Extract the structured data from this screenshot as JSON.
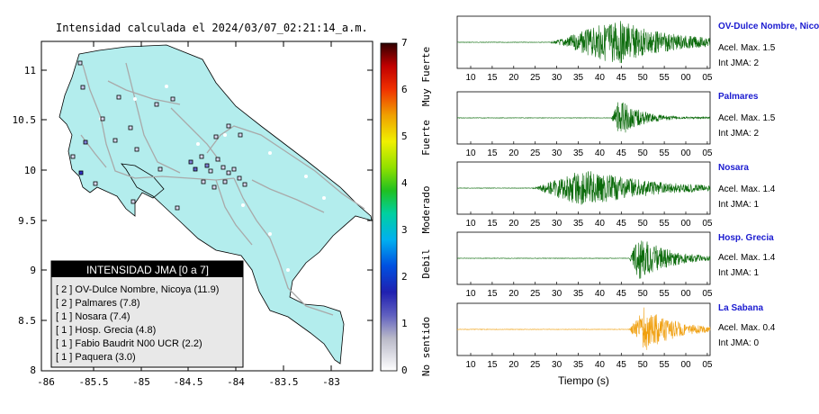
{
  "map": {
    "title": "Intensidad calculada el 2024/03/07_02:21:14_a.m.",
    "lat_ticks": [
      "11",
      "10.5",
      "10",
      "9.5",
      "9",
      "8.5",
      "8"
    ],
    "lon_ticks": [
      "-86",
      "-85.5",
      "-85",
      "-84.5",
      "-84",
      "-83.5",
      "-83"
    ],
    "legend": {
      "header": "INTENSIDAD JMA [0 a 7]",
      "rows": [
        "[ 2 ] OV-Dulce Nombre, Nicoya (11.9)",
        "[ 2 ] Palmares (7.8)",
        "[ 1 ] Nosara (7.4)",
        "[ 1 ] Hosp. Grecia (4.8)",
        "[ 1 ] Fabio Baudrit N00 UCR (2.2)",
        "[ 1 ] Paquera (3.0)"
      ]
    },
    "colors": {
      "land": "#b3eded",
      "station_edge": "#000000",
      "roads": "#a9a9a9"
    }
  },
  "colorbar": {
    "ticks": [
      "0",
      "1",
      "2",
      "3",
      "4",
      "5",
      "6",
      "7"
    ],
    "labels": [
      "No sentido",
      "Debil",
      "Moderado",
      "Fuerte",
      "Muy Fuerte"
    ]
  },
  "traces": {
    "time_ticks": [
      "10",
      "15",
      "20",
      "25",
      "30",
      "35",
      "40",
      "45",
      "50",
      "55",
      "00",
      "05"
    ],
    "xlabel": "Tiempo (s)",
    "stations": [
      {
        "name": "OV-Dulce Nombre, Nicoya",
        "accel": "Acel. Max. 1.5",
        "jma": "Int JMA: 2",
        "color": "#0b6b0b"
      },
      {
        "name": "Palmares",
        "accel": "Acel. Max. 1.5",
        "jma": "Int JMA: 2",
        "color": "#0b6b0b"
      },
      {
        "name": "Nosara",
        "accel": "Acel. Max. 1.4",
        "jma": "Int JMA: 1",
        "color": "#0b6b0b"
      },
      {
        "name": "Hosp. Grecia",
        "accel": "Acel. Max. 1.4",
        "jma": "Int JMA: 1",
        "color": "#0b6b0b"
      },
      {
        "name": "La Sabana",
        "accel": "Acel. Max. 0.4",
        "jma": "Int JMA: 0",
        "color": "#f0a010"
      }
    ]
  }
}
